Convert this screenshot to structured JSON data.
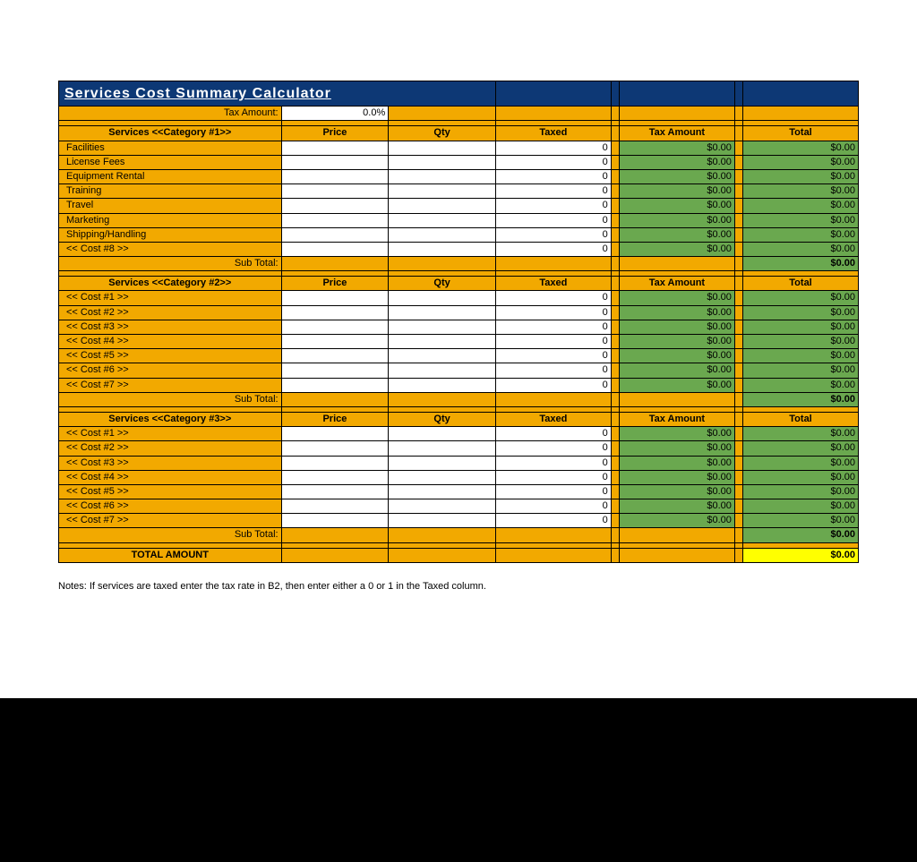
{
  "colors": {
    "header_bg": "#0d3875",
    "gold": "#f2a900",
    "green": "#6aa84f",
    "yellow": "#ffff00",
    "white": "#ffffff",
    "black": "#000000"
  },
  "title": "Services Cost Summary Calculator",
  "tax_label": "Tax Amount:",
  "tax_value": "0.0%",
  "columns": {
    "price": "Price",
    "qty": "Qty",
    "taxed": "Taxed",
    "tax_amount": "Tax Amount",
    "total": "Total"
  },
  "subtotal_label": "Sub Total:",
  "total_amount_label": "TOTAL AMOUNT",
  "total_amount_value": "$0.00",
  "categories": [
    {
      "header": "Services <<Category #1>>",
      "rows": [
        {
          "name": "Facilities",
          "price": "",
          "qty": "",
          "taxed": "0",
          "tax": "$0.00",
          "total": "$0.00"
        },
        {
          "name": "License Fees",
          "price": "",
          "qty": "",
          "taxed": "0",
          "tax": "$0.00",
          "total": "$0.00"
        },
        {
          "name": "Equipment Rental",
          "price": "",
          "qty": "",
          "taxed": "0",
          "tax": "$0.00",
          "total": "$0.00"
        },
        {
          "name": "Training",
          "price": "",
          "qty": "",
          "taxed": "0",
          "tax": "$0.00",
          "total": "$0.00"
        },
        {
          "name": "Travel",
          "price": "",
          "qty": "",
          "taxed": "0",
          "tax": "$0.00",
          "total": "$0.00"
        },
        {
          "name": "Marketing",
          "price": "",
          "qty": "",
          "taxed": "0",
          "tax": "$0.00",
          "total": "$0.00"
        },
        {
          "name": "Shipping/Handling",
          "price": "",
          "qty": "",
          "taxed": "0",
          "tax": "$0.00",
          "total": "$0.00"
        },
        {
          "name": "<< Cost #8 >>",
          "price": "",
          "qty": "",
          "taxed": "0",
          "tax": "$0.00",
          "total": "$0.00"
        }
      ],
      "subtotal": "$0.00"
    },
    {
      "header": "Services <<Category #2>>",
      "rows": [
        {
          "name": "<< Cost #1 >>",
          "price": "",
          "qty": "",
          "taxed": "0",
          "tax": "$0.00",
          "total": "$0.00"
        },
        {
          "name": "<< Cost #2 >>",
          "price": "",
          "qty": "",
          "taxed": "0",
          "tax": "$0.00",
          "total": "$0.00"
        },
        {
          "name": "<< Cost #3 >>",
          "price": "",
          "qty": "",
          "taxed": "0",
          "tax": "$0.00",
          "total": "$0.00"
        },
        {
          "name": "<< Cost #4 >>",
          "price": "",
          "qty": "",
          "taxed": "0",
          "tax": "$0.00",
          "total": "$0.00"
        },
        {
          "name": "<< Cost #5 >>",
          "price": "",
          "qty": "",
          "taxed": "0",
          "tax": "$0.00",
          "total": "$0.00"
        },
        {
          "name": "<< Cost #6 >>",
          "price": "",
          "qty": "",
          "taxed": "0",
          "tax": "$0.00",
          "total": "$0.00"
        },
        {
          "name": "<< Cost #7 >>",
          "price": "",
          "qty": "",
          "taxed": "0",
          "tax": "$0.00",
          "total": "$0.00"
        }
      ],
      "subtotal": "$0.00"
    },
    {
      "header": "Services <<Category #3>>",
      "rows": [
        {
          "name": "<< Cost #1 >>",
          "price": "",
          "qty": "",
          "taxed": "0",
          "tax": "$0.00",
          "total": "$0.00"
        },
        {
          "name": "<< Cost #2 >>",
          "price": "",
          "qty": "",
          "taxed": "0",
          "tax": "$0.00",
          "total": "$0.00"
        },
        {
          "name": "<< Cost #3 >>",
          "price": "",
          "qty": "",
          "taxed": "0",
          "tax": "$0.00",
          "total": "$0.00"
        },
        {
          "name": "<< Cost #4 >>",
          "price": "",
          "qty": "",
          "taxed": "0",
          "tax": "$0.00",
          "total": "$0.00"
        },
        {
          "name": "<< Cost #5 >>",
          "price": "",
          "qty": "",
          "taxed": "0",
          "tax": "$0.00",
          "total": "$0.00"
        },
        {
          "name": "<< Cost #6 >>",
          "price": "",
          "qty": "",
          "taxed": "0",
          "tax": "$0.00",
          "total": "$0.00"
        },
        {
          "name": "<< Cost #7 >>",
          "price": "",
          "qty": "",
          "taxed": "0",
          "tax": "$0.00",
          "total": "$0.00"
        }
      ],
      "subtotal": "$0.00"
    }
  ],
  "notes": "Notes: If services are taxed enter the tax rate in B2, then enter either a 0 or 1 in the Taxed column."
}
